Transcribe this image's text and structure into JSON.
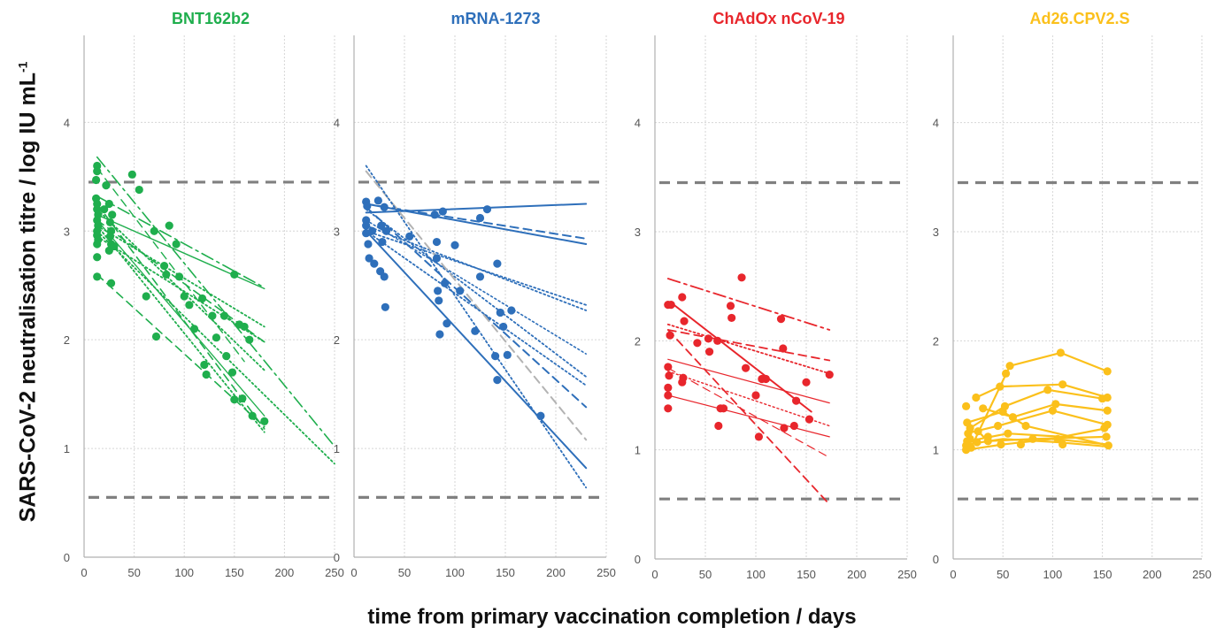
{
  "figure": {
    "ylabel_main": "SARS-CoV-2 neutralisation titre / log IU mL",
    "ylabel_sup": "-1",
    "xlabel": "time from primary vaccination completion / days"
  },
  "chart_data": [
    {
      "type": "scatter",
      "title": "BNT162b2",
      "color": "#1fae4d",
      "xlim": [
        0,
        250
      ],
      "ylim": [
        0,
        4.8
      ],
      "xticks": [
        0,
        50,
        100,
        150,
        200,
        250
      ],
      "yticks": [
        0,
        1,
        2,
        3,
        4
      ],
      "grid": true,
      "reference_lines": [
        3.45,
        0.55
      ],
      "points": [
        [
          13,
          3.6
        ],
        [
          13,
          3.55
        ],
        [
          12,
          3.47
        ],
        [
          12,
          3.3
        ],
        [
          13,
          3.25
        ],
        [
          13,
          3.2
        ],
        [
          14,
          3.15
        ],
        [
          13,
          3.1
        ],
        [
          14,
          3.05
        ],
        [
          13,
          3.0
        ],
        [
          13,
          2.96
        ],
        [
          14,
          2.92
        ],
        [
          13,
          2.88
        ],
        [
          13,
          2.76
        ],
        [
          13,
          2.58
        ],
        [
          22,
          3.42
        ],
        [
          20,
          3.2
        ],
        [
          25,
          3.25
        ],
        [
          28,
          3.15
        ],
        [
          26,
          3.08
        ],
        [
          27,
          3.0
        ],
        [
          26,
          2.95
        ],
        [
          27,
          2.88
        ],
        [
          25,
          2.82
        ],
        [
          30,
          2.86
        ],
        [
          27,
          2.52
        ],
        [
          48,
          3.52
        ],
        [
          55,
          3.38
        ],
        [
          70,
          3.0
        ],
        [
          85,
          3.05
        ],
        [
          92,
          2.88
        ],
        [
          62,
          2.4
        ],
        [
          72,
          2.03
        ],
        [
          80,
          2.68
        ],
        [
          82,
          2.6
        ],
        [
          95,
          2.58
        ],
        [
          100,
          2.4
        ],
        [
          105,
          2.32
        ],
        [
          110,
          2.1
        ],
        [
          118,
          2.38
        ],
        [
          120,
          1.77
        ],
        [
          122,
          1.68
        ],
        [
          128,
          2.22
        ],
        [
          132,
          2.02
        ],
        [
          140,
          2.22
        ],
        [
          142,
          1.85
        ],
        [
          148,
          1.7
        ],
        [
          150,
          2.6
        ],
        [
          150,
          1.45
        ],
        [
          155,
          2.14
        ],
        [
          158,
          1.46
        ],
        [
          160,
          2.12
        ],
        [
          165,
          2.0
        ],
        [
          168,
          1.3
        ],
        [
          180,
          1.25
        ]
      ],
      "lines": [
        [
          13,
          3.15,
          180,
          2.47,
          "solid",
          1.4
        ],
        [
          13,
          3.32,
          180,
          2.48,
          "dashdot",
          1.6
        ],
        [
          13,
          3.68,
          250,
          1.02,
          "dashdot",
          1.6
        ],
        [
          13,
          3.0,
          250,
          0.86,
          "dotted",
          1.8
        ],
        [
          13,
          3.1,
          180,
          1.98,
          "dashed",
          1.6
        ],
        [
          13,
          3.05,
          180,
          2.12,
          "dotted",
          1.8
        ],
        [
          13,
          3.2,
          180,
          1.72,
          "dotted",
          1.8
        ],
        [
          13,
          2.95,
          180,
          1.98,
          "dotted",
          1.8
        ],
        [
          13,
          3.25,
          180,
          1.18,
          "dashed",
          1.6
        ],
        [
          13,
          3.05,
          180,
          1.15,
          "dotted",
          1.8
        ],
        [
          13,
          2.6,
          180,
          1.2,
          "dashed",
          1.6
        ],
        [
          13,
          3.58,
          160,
          1.8,
          "dashed",
          1.4
        ],
        [
          13,
          3.1,
          180,
          1.3,
          "solid",
          1.3
        ]
      ]
    },
    {
      "type": "scatter",
      "title": "mRNA-1273",
      "color": "#2e6fba",
      "xlim": [
        0,
        250
      ],
      "ylim": [
        0,
        4.8
      ],
      "xticks": [
        0,
        50,
        100,
        150,
        200,
        250
      ],
      "yticks": [
        0,
        1,
        2,
        3,
        4
      ],
      "grid": true,
      "reference_lines": [
        3.45,
        0.55
      ],
      "points": [
        [
          12,
          3.27
        ],
        [
          13,
          3.23
        ],
        [
          12,
          3.1
        ],
        [
          12,
          3.05
        ],
        [
          12,
          2.98
        ],
        [
          14,
          2.88
        ],
        [
          15,
          2.75
        ],
        [
          18,
          3.0
        ],
        [
          20,
          2.7
        ],
        [
          24,
          3.28
        ],
        [
          27,
          3.05
        ],
        [
          26,
          2.63
        ],
        [
          28,
          2.9
        ],
        [
          30,
          3.22
        ],
        [
          30,
          2.58
        ],
        [
          32,
          3.0
        ],
        [
          31,
          2.3
        ],
        [
          55,
          2.95
        ],
        [
          80,
          3.15
        ],
        [
          82,
          2.9
        ],
        [
          82,
          2.75
        ],
        [
          83,
          2.45
        ],
        [
          84,
          2.36
        ],
        [
          85,
          2.05
        ],
        [
          88,
          3.18
        ],
        [
          90,
          2.52
        ],
        [
          92,
          2.15
        ],
        [
          100,
          2.87
        ],
        [
          105,
          2.45
        ],
        [
          125,
          3.12
        ],
        [
          125,
          2.58
        ],
        [
          120,
          2.08
        ],
        [
          132,
          3.2
        ],
        [
          140,
          1.85
        ],
        [
          142,
          2.7
        ],
        [
          142,
          1.63
        ],
        [
          145,
          2.25
        ],
        [
          148,
          2.12
        ],
        [
          152,
          1.86
        ],
        [
          156,
          2.27
        ],
        [
          185,
          1.3
        ]
      ],
      "lines": [
        [
          12,
          3.17,
          230,
          3.25,
          "solid",
          2.0
        ],
        [
          12,
          3.25,
          230,
          2.88,
          "solid",
          2.0
        ],
        [
          12,
          3.25,
          230,
          2.93,
          "dashed",
          2.0
        ],
        [
          12,
          3.05,
          230,
          2.27,
          "dotted",
          1.8
        ],
        [
          12,
          3.0,
          230,
          2.32,
          "dotted",
          1.8
        ],
        [
          12,
          3.1,
          230,
          1.87,
          "dotted",
          1.6
        ],
        [
          12,
          3.2,
          230,
          1.66,
          "dotted",
          1.8
        ],
        [
          12,
          3.22,
          230,
          1.38,
          "dashed",
          2.0
        ],
        [
          12,
          3.55,
          230,
          1.08,
          "dashed_gray",
          2.0
        ],
        [
          12,
          3.0,
          230,
          1.58,
          "dotted",
          1.8
        ],
        [
          12,
          3.0,
          230,
          0.82,
          "solid",
          2.0
        ],
        [
          12,
          3.6,
          230,
          0.64,
          "dotted",
          1.8
        ]
      ]
    },
    {
      "type": "scatter",
      "title": "ChAdOx nCoV-19",
      "color": "#e8262c",
      "xlim": [
        0,
        250
      ],
      "ylim": [
        0,
        4.8
      ],
      "xticks": [
        0,
        50,
        100,
        150,
        200,
        250
      ],
      "yticks": [
        0,
        1,
        2,
        3,
        4
      ],
      "grid": true,
      "reference_lines": [
        3.45,
        0.55
      ],
      "points": [
        [
          13,
          2.33
        ],
        [
          16,
          2.33
        ],
        [
          15,
          2.05
        ],
        [
          13,
          1.76
        ],
        [
          14,
          1.68
        ],
        [
          13,
          1.57
        ],
        [
          13,
          1.5
        ],
        [
          13,
          1.38
        ],
        [
          27,
          2.4
        ],
        [
          29,
          2.18
        ],
        [
          28,
          1.66
        ],
        [
          27,
          1.62
        ],
        [
          42,
          1.98
        ],
        [
          53,
          2.02
        ],
        [
          54,
          1.9
        ],
        [
          62,
          2.0
        ],
        [
          65,
          1.38
        ],
        [
          68,
          1.38
        ],
        [
          63,
          1.22
        ],
        [
          75,
          2.32
        ],
        [
          76,
          2.21
        ],
        [
          86,
          2.58
        ],
        [
          90,
          1.75
        ],
        [
          100,
          1.5
        ],
        [
          103,
          1.12
        ],
        [
          106,
          1.65
        ],
        [
          110,
          1.65
        ],
        [
          125,
          2.2
        ],
        [
          127,
          1.93
        ],
        [
          128,
          1.2
        ],
        [
          138,
          1.22
        ],
        [
          140,
          1.45
        ],
        [
          150,
          1.62
        ],
        [
          153,
          1.28
        ],
        [
          173,
          1.69
        ]
      ],
      "lines": [
        [
          13,
          2.57,
          173,
          2.1,
          "dashdot",
          1.8
        ],
        [
          13,
          2.1,
          173,
          1.82,
          "dashed",
          1.8
        ],
        [
          13,
          2.15,
          173,
          1.7,
          "dotted",
          1.8
        ],
        [
          16,
          2.35,
          155,
          1.35,
          "solid",
          2.0
        ],
        [
          13,
          1.83,
          173,
          1.43,
          "solid",
          1.2
        ],
        [
          13,
          1.72,
          173,
          1.22,
          "dotted",
          1.4
        ],
        [
          13,
          1.5,
          173,
          1.12,
          "solid",
          1.2
        ],
        [
          13,
          1.75,
          173,
          0.93,
          "dashed",
          1.2
        ],
        [
          13,
          2.1,
          173,
          0.5,
          "dashed",
          1.8
        ]
      ]
    },
    {
      "type": "scatter",
      "title": "Ad26.CPV2.S",
      "color": "#fbc01b",
      "xlim": [
        0,
        250
      ],
      "ylim": [
        0,
        4.8
      ],
      "xticks": [
        0,
        50,
        100,
        150,
        200,
        250
      ],
      "yticks": [
        0,
        1,
        2,
        3,
        4
      ],
      "grid": true,
      "reference_lines": [
        3.45,
        0.55
      ],
      "points": [
        [
          13,
          1.4
        ],
        [
          14,
          1.25
        ],
        [
          15,
          1.15
        ],
        [
          14,
          1.08
        ],
        [
          13,
          1.04
        ],
        [
          13,
          1.0
        ],
        [
          17,
          1.2
        ],
        [
          17,
          1.1
        ],
        [
          18,
          1.02
        ],
        [
          23,
          1.48
        ],
        [
          25,
          1.17
        ],
        [
          24,
          1.07
        ],
        [
          30,
          1.38
        ],
        [
          35,
          1.08
        ],
        [
          35,
          1.12
        ],
        [
          45,
          1.22
        ],
        [
          47,
          1.58
        ],
        [
          48,
          1.05
        ],
        [
          50,
          1.35
        ],
        [
          52,
          1.4
        ],
        [
          53,
          1.7
        ],
        [
          55,
          1.15
        ],
        [
          57,
          1.77
        ],
        [
          60,
          1.3
        ],
        [
          68,
          1.05
        ],
        [
          73,
          1.22
        ],
        [
          80,
          1.1
        ],
        [
          95,
          1.55
        ],
        [
          100,
          1.36
        ],
        [
          103,
          1.42
        ],
        [
          105,
          1.1
        ],
        [
          108,
          1.89
        ],
        [
          110,
          1.6
        ],
        [
          110,
          1.05
        ],
        [
          150,
          1.47
        ],
        [
          152,
          1.2
        ],
        [
          154,
          1.12
        ],
        [
          155,
          1.72
        ],
        [
          155,
          1.48
        ],
        [
          155,
          1.36
        ],
        [
          155,
          1.23
        ],
        [
          156,
          1.04
        ]
      ],
      "polylines": [
        [
          [
            13,
            1.0
          ],
          [
            50,
            1.05
          ],
          [
            100,
            1.1
          ],
          [
            155,
            1.05
          ]
        ],
        [
          [
            14,
            1.05
          ],
          [
            50,
            1.1
          ],
          [
            105,
            1.07
          ],
          [
            155,
            1.03
          ]
        ],
        [
          [
            15,
            1.08
          ],
          [
            55,
            1.15
          ],
          [
            110,
            1.12
          ],
          [
            155,
            1.2
          ]
        ],
        [
          [
            18,
            1.02
          ],
          [
            57,
            1.77
          ],
          [
            108,
            1.89
          ],
          [
            155,
            1.72
          ]
        ],
        [
          [
            23,
            1.48
          ],
          [
            47,
            1.58
          ],
          [
            110,
            1.6
          ],
          [
            155,
            1.48
          ]
        ],
        [
          [
            30,
            1.38
          ],
          [
            60,
            1.3
          ],
          [
            103,
            1.42
          ],
          [
            155,
            1.36
          ]
        ],
        [
          [
            13,
            1.15
          ],
          [
            45,
            1.22
          ],
          [
            100,
            1.36
          ],
          [
            155,
            1.23
          ]
        ],
        [
          [
            17,
            1.2
          ],
          [
            52,
            1.4
          ],
          [
            95,
            1.55
          ],
          [
            150,
            1.47
          ]
        ],
        [
          [
            14,
            1.25
          ],
          [
            50,
            1.35
          ],
          [
            73,
            1.22
          ],
          [
            156,
            1.04
          ]
        ],
        [
          [
            25,
            1.17
          ],
          [
            35,
            1.08
          ],
          [
            80,
            1.1
          ],
          [
            154,
            1.12
          ]
        ]
      ]
    }
  ]
}
